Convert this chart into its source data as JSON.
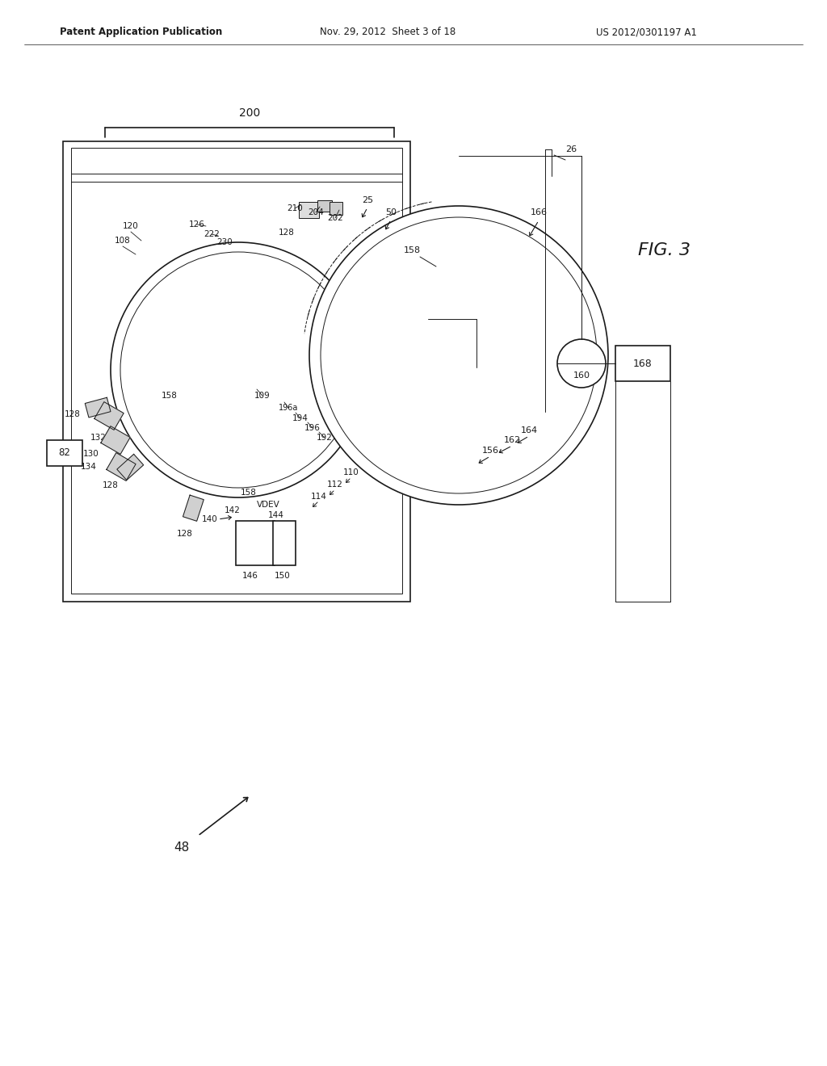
{
  "header_left": "Patent Application Publication",
  "header_center": "Nov. 29, 2012  Sheet 3 of 18",
  "header_right": "US 2012/0301197 A1",
  "fig_label": "FIG. 3",
  "label_200": "200",
  "label_48": "48",
  "bg_color": "#ffffff",
  "line_color": "#1a1a1a"
}
